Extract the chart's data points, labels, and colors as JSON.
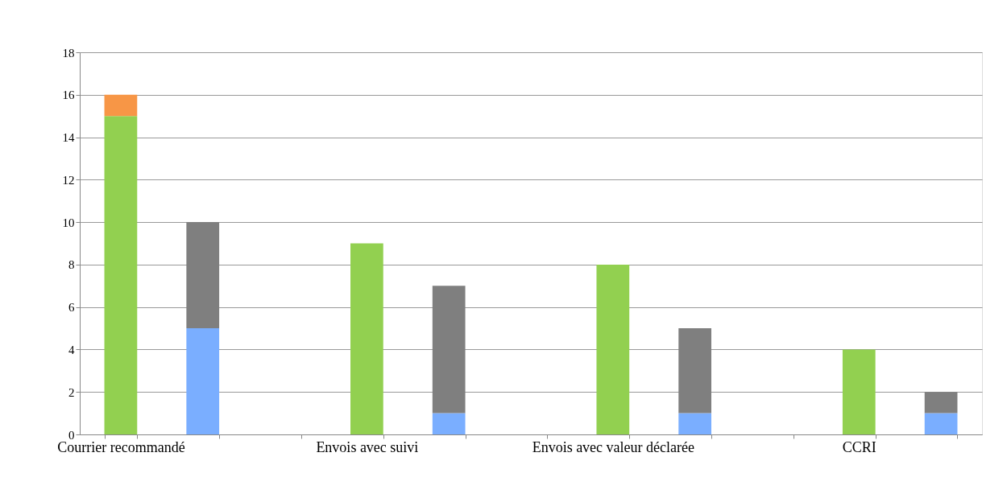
{
  "chart_data": {
    "type": "bar",
    "stacked": true,
    "categories": [
      "Courrier recommandé",
      null,
      null,
      "Envois avec suivi",
      null,
      null,
      "Envois avec valeur déclarée",
      null,
      null,
      "CCRI",
      null
    ],
    "series": [
      {
        "color": "#92d050",
        "values": [
          15,
          null,
          null,
          9,
          null,
          null,
          8,
          null,
          null,
          4,
          null
        ]
      },
      {
        "color": "#f79646",
        "values": [
          1,
          null,
          null,
          null,
          null,
          null,
          null,
          null,
          null,
          null,
          null
        ]
      },
      {
        "color": "#7aaeff",
        "values": [
          null,
          5,
          null,
          null,
          1,
          null,
          null,
          1,
          null,
          null,
          1
        ]
      },
      {
        "color": "#7f7f7f",
        "values": [
          null,
          5,
          null,
          null,
          6,
          null,
          null,
          4,
          null,
          null,
          1
        ]
      }
    ],
    "ylim": [
      0,
      18
    ],
    "yticks": [
      0,
      2,
      4,
      6,
      8,
      10,
      12,
      14,
      16,
      18
    ],
    "grid": "y"
  }
}
